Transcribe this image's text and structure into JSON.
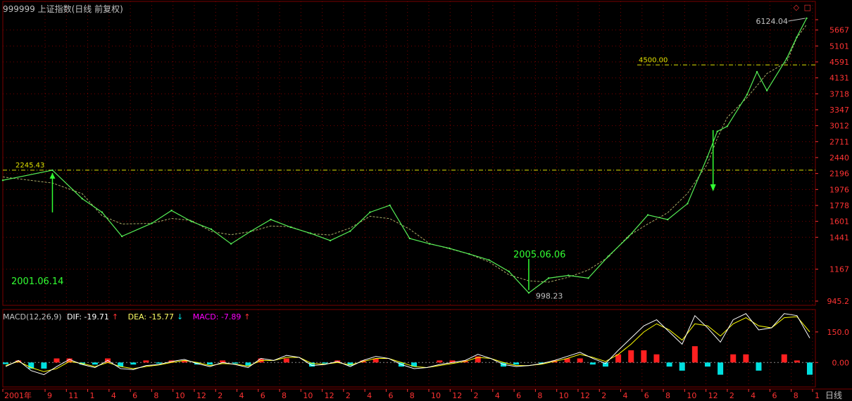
{
  "title": "999999 上证指数(日线 前复权)",
  "window_controls": [
    "◇",
    "□"
  ],
  "colors": {
    "background": "#000000",
    "grid": "#7a0000",
    "axis_text": "#ff3333",
    "close_line": "#55ee55",
    "ma_line": "#aaaa66",
    "ref_line": "#e0e000",
    "annotation": "#33ff33",
    "dif": "#ffffff",
    "dea": "#ffff00",
    "macd_pos": "#ff2020",
    "macd_neg": "#00e0e0",
    "macd_label": "#ff00ff"
  },
  "period_label": "日线",
  "chart_data": [
    {
      "type": "line",
      "title": "999999 上证指数(日线 前复权)",
      "y_ticks": [
        "6124.04",
        "5667",
        "5101",
        "4591",
        "4131",
        "3718",
        "3347",
        "3012",
        "2711",
        "2440",
        "2196",
        "1976",
        "1778",
        "1601",
        "1441",
        "1167",
        "945.2"
      ],
      "x_ticks": [
        "2001年",
        "9",
        "11",
        "1",
        "4",
        "6",
        "8",
        "10",
        "12",
        "2",
        "4",
        "6",
        "8",
        "10",
        "12",
        "2",
        "4",
        "6",
        "8",
        "10",
        "12",
        "2",
        "4",
        "6",
        "8",
        "10",
        "12",
        "2",
        "4",
        "6",
        "8",
        "10",
        "12",
        "2",
        "4",
        "6",
        "8",
        "1"
      ],
      "ylim": [
        945.2,
        6124.04
      ],
      "series": [
        {
          "name": "close",
          "points": [
            [
              "2001-01",
              2100
            ],
            [
              "2001-06",
              2245
            ],
            [
              "2001-09",
              1860
            ],
            [
              "2001-11",
              1700
            ],
            [
              "2002-01",
              1450
            ],
            [
              "2002-04",
              1580
            ],
            [
              "2002-06",
              1720
            ],
            [
              "2002-08",
              1600
            ],
            [
              "2002-10",
              1520
            ],
            [
              "2002-12",
              1380
            ],
            [
              "2003-02",
              1500
            ],
            [
              "2003-04",
              1620
            ],
            [
              "2003-06",
              1540
            ],
            [
              "2003-08",
              1480
            ],
            [
              "2003-10",
              1410
            ],
            [
              "2003-12",
              1500
            ],
            [
              "2004-02",
              1700
            ],
            [
              "2004-04",
              1780
            ],
            [
              "2004-06",
              1430
            ],
            [
              "2004-08",
              1380
            ],
            [
              "2004-10",
              1340
            ],
            [
              "2004-12",
              1290
            ],
            [
              "2005-02",
              1240
            ],
            [
              "2005-04",
              1150
            ],
            [
              "2005-06",
              998
            ],
            [
              "2005-08",
              1100
            ],
            [
              "2005-10",
              1120
            ],
            [
              "2005-12",
              1100
            ],
            [
              "2006-02",
              1270
            ],
            [
              "2006-04",
              1440
            ],
            [
              "2006-06",
              1670
            ],
            [
              "2006-08",
              1620
            ],
            [
              "2006-10",
              1800
            ],
            [
              "2006-12",
              2450
            ],
            [
              "2007-01",
              2900
            ],
            [
              "2007-02",
              3000
            ],
            [
              "2007-04",
              3700
            ],
            [
              "2007-05",
              4300
            ],
            [
              "2007-06",
              3800
            ],
            [
              "2007-08",
              4700
            ],
            [
              "2007-09",
              5400
            ],
            [
              "2007-10",
              6124
            ]
          ]
        }
      ],
      "reference_lines": [
        {
          "label": "2245.43",
          "value": 2245.43
        },
        {
          "label": "4500.00",
          "value": 4500.0
        }
      ],
      "annotations": [
        {
          "text": "2001.06.14"
        },
        {
          "text": "2005.06.06"
        },
        {
          "text": "998.23"
        },
        {
          "text": "6124.04"
        }
      ]
    },
    {
      "type": "bar",
      "title": "MACD(12,26,9)",
      "legend": {
        "macd_name": "MACD(12,26,9)",
        "dif": "DIF: -19.71",
        "dea": "DEA: -15.77",
        "macd": "MACD: -7.89"
      },
      "y_ticks": [
        "150.0",
        "0.00"
      ],
      "ylim": [
        -120,
        260
      ],
      "dif_series": [
        -20,
        10,
        -40,
        -60,
        -20,
        15,
        -10,
        -25,
        10,
        -30,
        -35,
        -15,
        -10,
        5,
        15,
        -5,
        -20,
        0,
        -10,
        -25,
        20,
        10,
        35,
        25,
        -15,
        -10,
        5,
        -20,
        10,
        30,
        20,
        -10,
        -30,
        -25,
        -10,
        0,
        10,
        40,
        20,
        -10,
        -20,
        -15,
        -5,
        10,
        30,
        50,
        20,
        -5,
        60,
        120,
        180,
        210,
        150,
        90,
        230,
        170,
        100,
        210,
        240,
        160,
        170,
        240,
        230,
        120
      ],
      "dea_series": [
        -15,
        5,
        -25,
        -45,
        -30,
        5,
        -5,
        -20,
        0,
        -20,
        -30,
        -20,
        -12,
        0,
        10,
        0,
        -15,
        -5,
        -8,
        -18,
        10,
        10,
        25,
        25,
        -5,
        -8,
        0,
        -12,
        5,
        20,
        20,
        0,
        -20,
        -25,
        -15,
        -5,
        5,
        25,
        20,
        0,
        -15,
        -15,
        -8,
        5,
        20,
        40,
        25,
        5,
        40,
        90,
        150,
        190,
        160,
        110,
        190,
        180,
        130,
        190,
        220,
        180,
        170,
        220,
        225,
        150
      ],
      "macd_values": [
        -8,
        10,
        -30,
        -30,
        20,
        20,
        -10,
        -10,
        20,
        -20,
        -10,
        10,
        -5,
        10,
        10,
        -10,
        -10,
        10,
        -5,
        -15,
        20,
        0,
        20,
        0,
        -20,
        -5,
        10,
        -15,
        10,
        20,
        0,
        -20,
        -20,
        0,
        10,
        10,
        10,
        30,
        0,
        -20,
        -10,
        0,
        -5,
        10,
        20,
        20,
        -10,
        -20,
        40,
        60,
        60,
        40,
        -20,
        -40,
        80,
        -20,
        -60,
        40,
        40,
        -40,
        0,
        40,
        10,
        -60
      ]
    }
  ]
}
